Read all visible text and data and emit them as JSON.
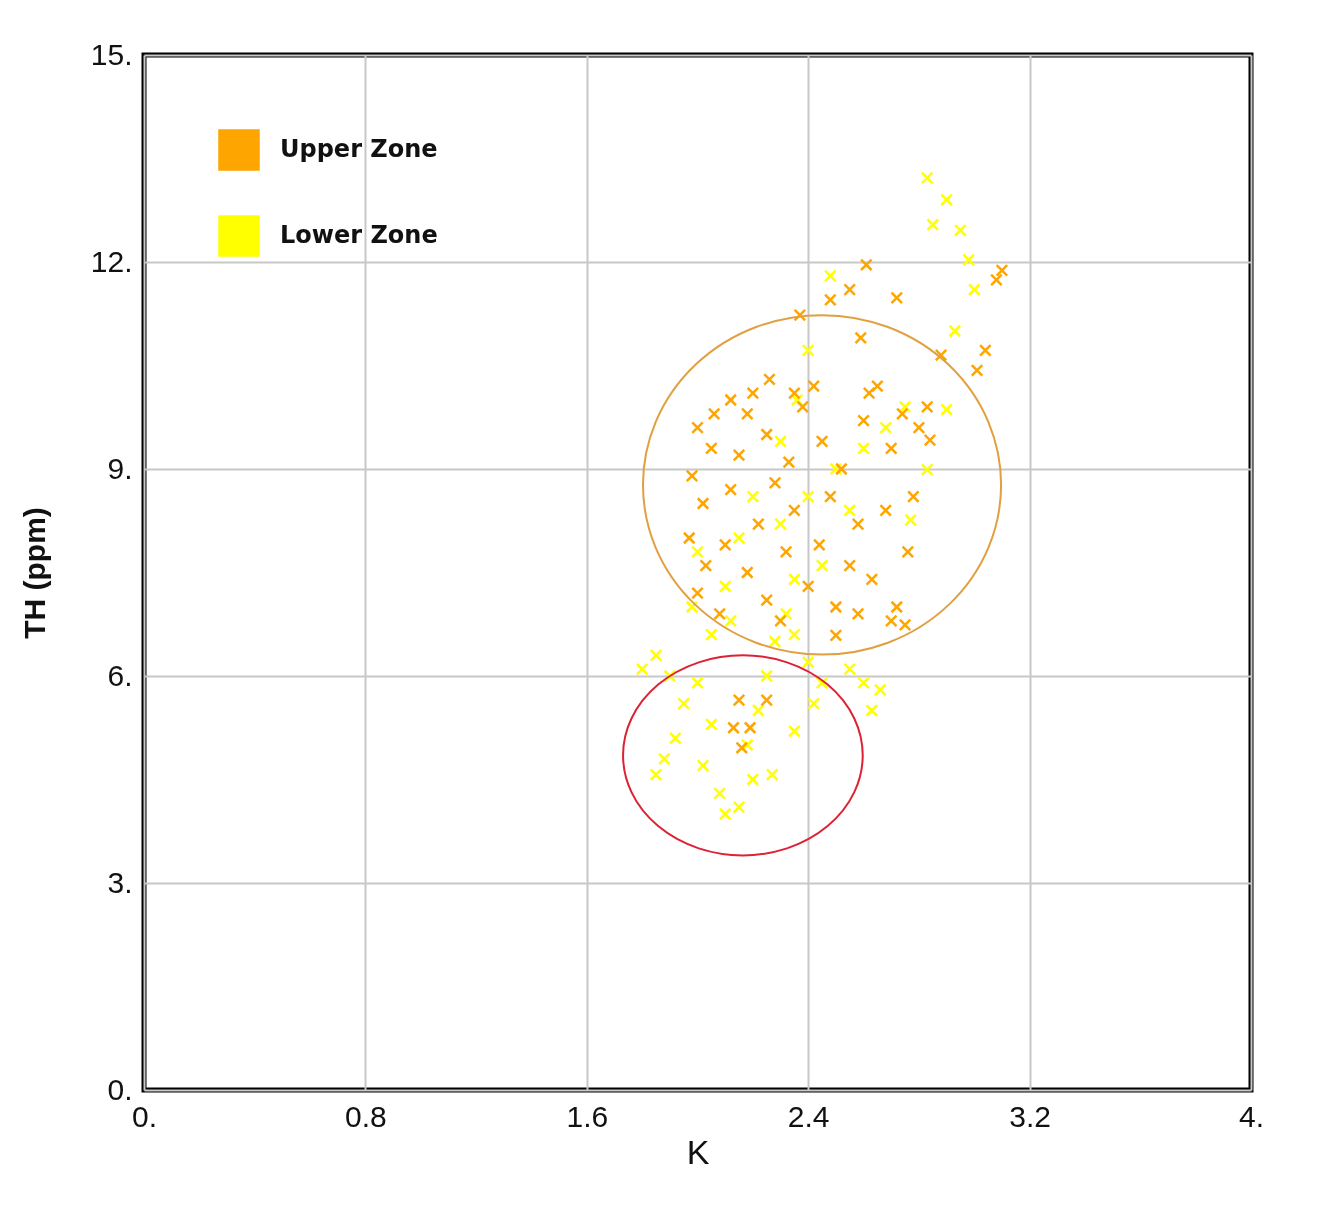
{
  "chart_data": {
    "type": "scatter",
    "xlabel": "K",
    "ylabel": "TH  (ppm)",
    "xlim": [
      0,
      4
    ],
    "ylim": [
      0,
      15
    ],
    "xticks": [
      {
        "value": 0,
        "label": "0."
      },
      0.8,
      1.6,
      2.4,
      3.2,
      {
        "value": 4,
        "label": "4."
      }
    ],
    "yticks": [
      {
        "value": 0,
        "label": "0."
      },
      {
        "value": 3,
        "label": "3."
      },
      {
        "value": 6,
        "label": "6."
      },
      {
        "value": 9,
        "label": "9."
      },
      {
        "value": 12,
        "label": "12."
      },
      {
        "value": 15,
        "label": "15."
      }
    ],
    "grid": true,
    "legend": "top left",
    "marker": "cross",
    "series": [
      {
        "name": "Upper Zone",
        "color": "#ffa500",
        "x": [
          2.0,
          2.05,
          1.98,
          2.02,
          1.97,
          2.03,
          2.0,
          2.08,
          2.1,
          2.12,
          2.15,
          2.18,
          2.2,
          2.25,
          2.28,
          2.22,
          2.18,
          2.25,
          2.3,
          2.32,
          2.35,
          2.33,
          2.38,
          2.42,
          2.45,
          2.48,
          2.44,
          2.4,
          2.5,
          2.55,
          2.58,
          2.52,
          2.6,
          2.65,
          2.7,
          2.68,
          2.63,
          2.72,
          2.76,
          2.78,
          2.58,
          2.12,
          2.06,
          2.26,
          2.35,
          2.62,
          2.74,
          2.8,
          2.83,
          2.7,
          2.37,
          2.48,
          2.55,
          2.61,
          2.72,
          2.59,
          2.88,
          3.04,
          3.01,
          3.1,
          3.08,
          2.84,
          2.15,
          2.25,
          2.13,
          2.19,
          2.16,
          2.5,
          2.75
        ],
        "values": [
          9.6,
          9.3,
          8.9,
          8.5,
          8.0,
          7.6,
          7.2,
          6.9,
          7.9,
          8.7,
          9.2,
          9.8,
          10.1,
          9.5,
          8.8,
          8.2,
          7.5,
          7.1,
          6.8,
          7.8,
          8.4,
          9.1,
          9.9,
          10.2,
          9.4,
          8.6,
          7.9,
          7.3,
          7.0,
          7.6,
          8.2,
          9.0,
          9.7,
          10.2,
          9.3,
          8.4,
          7.4,
          7.0,
          7.8,
          8.6,
          6.9,
          10.0,
          9.8,
          10.3,
          10.1,
          10.1,
          9.8,
          9.6,
          9.9,
          6.8,
          11.23,
          11.45,
          11.6,
          11.96,
          11.48,
          10.9,
          10.65,
          10.72,
          10.43,
          11.88,
          11.74,
          9.42,
          5.65,
          5.65,
          5.25,
          5.25,
          4.96,
          6.59,
          6.74
        ]
      },
      {
        "name": "Lower Zone",
        "color": "#ffff00",
        "x": [
          1.85,
          1.9,
          1.95,
          1.92,
          1.88,
          1.85,
          2.0,
          2.05,
          2.02,
          2.08,
          2.1,
          2.15,
          2.2,
          2.18,
          2.22,
          2.25,
          2.28,
          2.32,
          2.35,
          2.4,
          2.45,
          2.55,
          2.6,
          2.66,
          2.63,
          2.27,
          2.12,
          2.05,
          1.98,
          2.1,
          2.0,
          2.15,
          2.3,
          2.4,
          2.5,
          2.55,
          2.45,
          2.35,
          2.6,
          2.68,
          2.75,
          2.77,
          2.83,
          2.9,
          2.93,
          3.0,
          2.98,
          2.95,
          2.9,
          2.85,
          2.83,
          2.48,
          2.4,
          2.36,
          2.3,
          2.2,
          2.42,
          2.35,
          1.8
        ],
        "values": [
          6.3,
          6.0,
          5.6,
          5.1,
          4.8,
          4.57,
          5.9,
          5.3,
          4.7,
          4.3,
          4.0,
          4.1,
          4.5,
          5.0,
          5.5,
          6.0,
          6.5,
          6.9,
          6.6,
          6.2,
          5.9,
          6.1,
          5.9,
          5.8,
          5.5,
          4.57,
          6.8,
          6.6,
          7.0,
          7.3,
          7.8,
          8.0,
          8.2,
          8.6,
          9.0,
          8.4,
          7.6,
          7.4,
          9.3,
          9.6,
          9.9,
          8.26,
          8.99,
          9.86,
          11.0,
          11.6,
          12.03,
          12.46,
          12.9,
          12.54,
          13.22,
          11.8,
          10.72,
          10.0,
          9.4,
          8.6,
          5.6,
          5.2,
          6.1
        ]
      }
    ]
  }
}
